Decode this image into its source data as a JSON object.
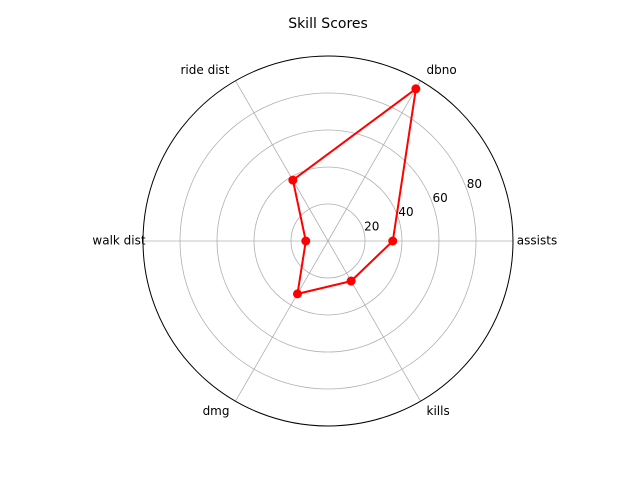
{
  "chart_data": {
    "type": "radar",
    "title": "Skill Scores",
    "axes": [
      "assists",
      "dbno",
      "ride dist",
      "walk dist",
      "dmg",
      "kills"
    ],
    "series": [
      {
        "values": [
          35,
          95,
          38,
          12,
          33,
          25
        ],
        "color": "#ff0000"
      }
    ],
    "r_ticks": [
      20,
      40,
      60,
      80
    ],
    "rlim": [
      0,
      100
    ],
    "grid": true,
    "legend": "none"
  }
}
